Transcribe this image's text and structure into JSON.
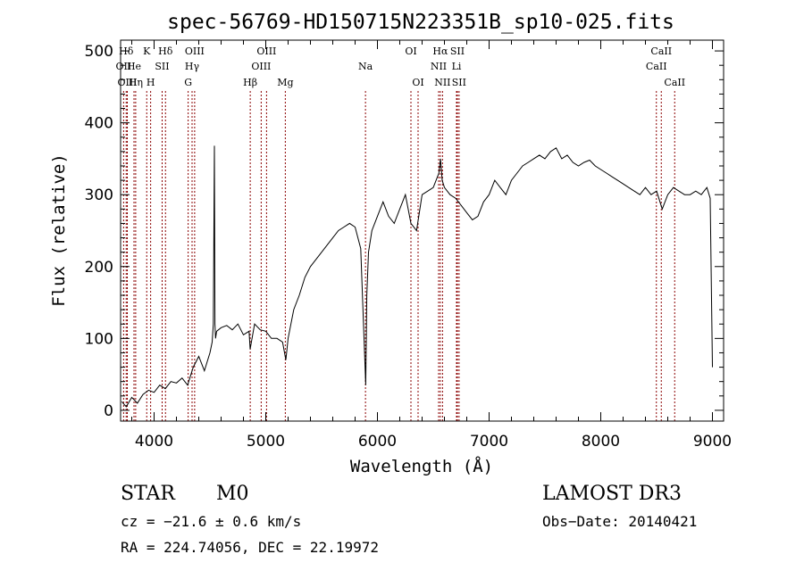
{
  "chart_data": {
    "type": "line",
    "title": "spec-56769-HD150715N223351B_sp10-025.fits",
    "xlabel": "Wavelength (Å)",
    "ylabel": "Flux (relative)",
    "xlim": [
      3700,
      9100
    ],
    "ylim": [
      -15,
      515
    ],
    "xticks": [
      4000,
      5000,
      6000,
      7000,
      8000,
      9000
    ],
    "yticks": [
      0,
      100,
      200,
      300,
      400,
      500
    ],
    "grid": false,
    "line_color": "#000000",
    "marker_color": "#8b0000",
    "series": [
      {
        "x": [
          3710,
          3750,
          3800,
          3850,
          3900,
          3950,
          4000,
          4050,
          4100,
          4150,
          4200,
          4250,
          4300,
          4350,
          4400,
          4450,
          4500,
          4520,
          4530,
          4540,
          4545,
          4550,
          4560,
          4600,
          4650,
          4700,
          4750,
          4800,
          4850,
          4860,
          4900,
          4950,
          5000,
          5050,
          5100,
          5150,
          5180,
          5200,
          5250,
          5300,
          5350,
          5400,
          5450,
          5500,
          5550,
          5600,
          5650,
          5700,
          5750,
          5800,
          5850,
          5880,
          5895,
          5905,
          5920,
          5950,
          6000,
          6050,
          6100,
          6150,
          6200,
          6250,
          6300,
          6350,
          6400,
          6450,
          6500,
          6550,
          6565,
          6580,
          6600,
          6650,
          6700,
          6750,
          6800,
          6850,
          6900,
          6950,
          7000,
          7050,
          7100,
          7150,
          7200,
          7250,
          7300,
          7350,
          7400,
          7450,
          7500,
          7550,
          7600,
          7650,
          7700,
          7750,
          7800,
          7850,
          7900,
          7950,
          8000,
          8050,
          8100,
          8150,
          8200,
          8250,
          8300,
          8350,
          8400,
          8450,
          8500,
          8550,
          8600,
          8650,
          8700,
          8750,
          8800,
          8850,
          8900,
          8950,
          8980,
          9000
        ],
        "y": [
          12,
          5,
          18,
          10,
          22,
          28,
          25,
          35,
          30,
          40,
          38,
          45,
          35,
          60,
          75,
          55,
          80,
          95,
          120,
          368,
          120,
          100,
          110,
          115,
          118,
          112,
          120,
          105,
          110,
          85,
          120,
          112,
          110,
          100,
          100,
          95,
          70,
          100,
          140,
          160,
          185,
          200,
          210,
          220,
          230,
          240,
          250,
          255,
          260,
          255,
          225,
          100,
          35,
          160,
          220,
          250,
          270,
          290,
          270,
          260,
          280,
          300,
          260,
          250,
          300,
          305,
          310,
          330,
          350,
          320,
          310,
          300,
          295,
          285,
          275,
          265,
          270,
          290,
          300,
          320,
          310,
          300,
          320,
          330,
          340,
          345,
          350,
          355,
          350,
          360,
          365,
          350,
          355,
          345,
          340,
          345,
          348,
          340,
          335,
          330,
          325,
          320,
          315,
          310,
          305,
          300,
          310,
          300,
          305,
          280,
          300,
          310,
          305,
          300,
          300,
          305,
          300,
          310,
          295,
          60
        ]
      }
    ],
    "lines": [
      {
        "label": "Hδ",
        "x": 3750,
        "row": 0
      },
      {
        "label": "OII",
        "x": 3727,
        "row": 1
      },
      {
        "label": "OIII",
        "x": 3760,
        "row": 2
      },
      {
        "label": "He",
        "x": 3820,
        "row": 1
      },
      {
        "label": "Hη",
        "x": 3835,
        "row": 2
      },
      {
        "label": "K",
        "x": 3934,
        "row": 0
      },
      {
        "label": "H",
        "x": 3969,
        "row": 2
      },
      {
        "label": "SII",
        "x": 4072,
        "row": 1
      },
      {
        "label": "Hδ",
        "x": 4102,
        "row": 0
      },
      {
        "label": "G",
        "x": 4305,
        "row": 2
      },
      {
        "label": "OIII",
        "x": 4363,
        "row": 0
      },
      {
        "label": "Hγ",
        "x": 4340,
        "row": 1
      },
      {
        "label": "Hβ",
        "x": 4861,
        "row": 2
      },
      {
        "label": "OIII",
        "x": 4959,
        "row": 1
      },
      {
        "label": "OIII",
        "x": 5007,
        "row": 0
      },
      {
        "label": "Mg",
        "x": 5175,
        "row": 2
      },
      {
        "label": "Na",
        "x": 5893,
        "row": 1
      },
      {
        "label": "OI",
        "x": 6300,
        "row": 0
      },
      {
        "label": "OI",
        "x": 6364,
        "row": 2
      },
      {
        "label": "NII",
        "x": 6548,
        "row": 1
      },
      {
        "label": "Hα",
        "x": 6563,
        "row": 0
      },
      {
        "label": "NII",
        "x": 6583,
        "row": 2
      },
      {
        "label": "Li",
        "x": 6708,
        "row": 1
      },
      {
        "label": "SII",
        "x": 6716,
        "row": 0
      },
      {
        "label": "SII",
        "x": 6731,
        "row": 2
      },
      {
        "label": "CaII",
        "x": 8498,
        "row": 1
      },
      {
        "label": "CaII",
        "x": 8542,
        "row": 0
      },
      {
        "label": "CaII",
        "x": 8662,
        "row": 2
      }
    ]
  },
  "info": {
    "object_class": "STAR",
    "subclass": "M0",
    "cz": "cz = −21.6 ± 0.6 km/s",
    "radec": "RA = 224.74056, DEC =  22.19972",
    "survey": "LAMOST DR3",
    "obs_date": "Obs−Date: 20140421"
  }
}
